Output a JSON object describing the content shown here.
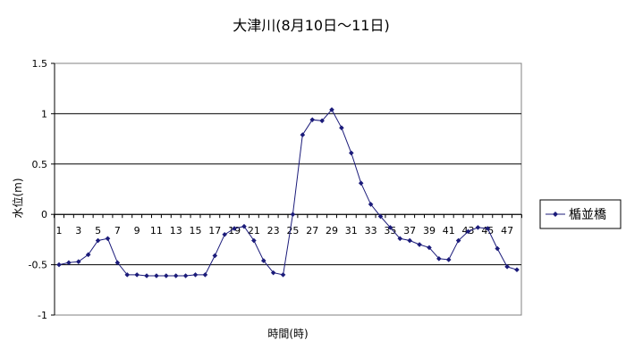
{
  "chart_data": {
    "type": "line",
    "title": "大津川(8月10日〜11日)",
    "xlabel": "時間(時)",
    "ylabel": "水位(m)",
    "x": [
      1,
      2,
      3,
      4,
      5,
      6,
      7,
      8,
      9,
      10,
      11,
      12,
      13,
      14,
      15,
      16,
      17,
      18,
      19,
      20,
      21,
      22,
      23,
      24,
      25,
      26,
      27,
      28,
      29,
      30,
      31,
      32,
      33,
      34,
      35,
      36,
      37,
      38,
      39,
      40,
      41,
      42,
      43,
      44,
      45,
      46,
      47,
      48
    ],
    "x_tick_labels": [
      "1",
      "3",
      "5",
      "7",
      "9",
      "11",
      "13",
      "15",
      "17",
      "19",
      "21",
      "23",
      "25",
      "27",
      "29",
      "31",
      "33",
      "35",
      "37",
      "39",
      "41",
      "43",
      "45",
      "47"
    ],
    "y_tick_labels": [
      "1.5",
      "1",
      "0.5",
      "0",
      "-0.5",
      "-1"
    ],
    "ylim": [
      -1,
      1.5
    ],
    "series": [
      {
        "name": "楯並橋",
        "color": "#1b1b7a",
        "values": [
          -0.5,
          -0.48,
          -0.47,
          -0.4,
          -0.26,
          -0.24,
          -0.48,
          -0.6,
          -0.6,
          -0.61,
          -0.61,
          -0.61,
          -0.61,
          -0.61,
          -0.6,
          -0.6,
          -0.41,
          -0.2,
          -0.14,
          -0.12,
          -0.26,
          -0.46,
          -0.58,
          -0.6,
          0.0,
          0.79,
          0.94,
          0.93,
          1.04,
          0.86,
          0.61,
          0.31,
          0.1,
          -0.02,
          -0.13,
          -0.24,
          -0.26,
          -0.3,
          -0.33,
          -0.44,
          -0.45,
          -0.26,
          -0.17,
          -0.13,
          -0.14,
          -0.34,
          -0.52,
          -0.55
        ]
      }
    ],
    "grid": true,
    "legend_position": "right"
  }
}
